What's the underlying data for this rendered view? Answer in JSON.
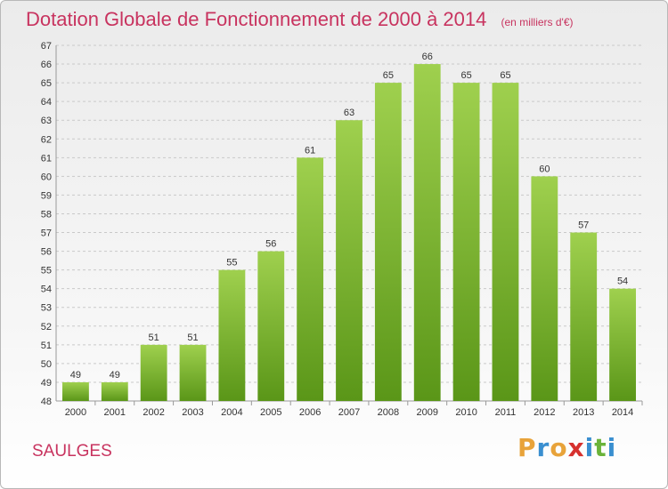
{
  "header": {
    "title": "Dotation Globale de Fonctionnement de 2000 à 2014",
    "subtitle": "(en milliers d'€)"
  },
  "commune": "SAULGES",
  "logo": {
    "letters": [
      "P",
      "r",
      "o",
      "x",
      "i",
      "t",
      "i"
    ],
    "colors": [
      "#e8a33a",
      "#3a8fd0",
      "#e8a33a",
      "#d6312e",
      "#3a8fd0",
      "#6ab33a",
      "#3a8fd0"
    ]
  },
  "colors": {
    "bar_top": "#9fd04e",
    "bar_bottom": "#5a9618",
    "accent": "#c8335f"
  },
  "chart_data": {
    "type": "bar",
    "categories": [
      "2000",
      "2001",
      "2002",
      "2003",
      "2004",
      "2005",
      "2006",
      "2007",
      "2008",
      "2009",
      "2010",
      "2011",
      "2012",
      "2013",
      "2014"
    ],
    "values": [
      49,
      49,
      51,
      51,
      55,
      56,
      61,
      63,
      65,
      66,
      65,
      65,
      60,
      57,
      54
    ],
    "title": "Dotation Globale de Fonctionnement de 2000 à 2014",
    "subtitle": "(en milliers d'€)",
    "ylim": [
      48,
      67
    ],
    "yticks": [
      48,
      49,
      50,
      51,
      52,
      53,
      54,
      55,
      56,
      57,
      58,
      59,
      60,
      61,
      62,
      63,
      64,
      65,
      66,
      67
    ],
    "grid": true
  }
}
